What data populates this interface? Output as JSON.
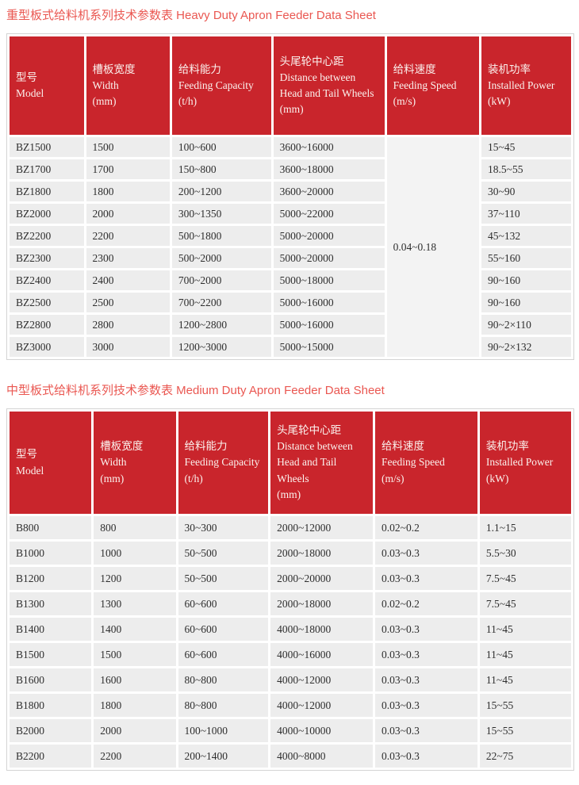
{
  "colors": {
    "header_bg": "#c9252c",
    "header_text": "#fbf2ee",
    "title": "#ea5751",
    "row_bg": "#ededed",
    "merged_cell_bg": "#f3f3f3",
    "body_text": "#2e2e2e",
    "table_border": "#d4d4d4"
  },
  "tables": [
    {
      "id": "heavy-duty",
      "title": "重型板式给料机系列技术参数表 Heavy Duty Apron Feeder Data Sheet",
      "columns": [
        {
          "key": "model",
          "zh": "型号",
          "en": "Model",
          "unit": ""
        },
        {
          "key": "width",
          "zh": "槽板宽度",
          "en": "Width",
          "unit": "(mm)"
        },
        {
          "key": "capacity",
          "zh": "给料能力",
          "en": "Feeding Capacity",
          "unit": "(t/h)"
        },
        {
          "key": "distance",
          "zh": "头尾轮中心距",
          "en": "Distance between Head and Tail Wheels",
          "unit": "(mm)"
        },
        {
          "key": "speed",
          "zh": "给料速度",
          "en": "Feeding Speed",
          "unit": "(m/s)"
        },
        {
          "key": "power",
          "zh": "装机功率",
          "en": "Installed Power",
          "unit": "(kW)"
        }
      ],
      "merged_speed": "0.04~0.18",
      "rows": [
        [
          "BZ1500",
          "1500",
          "100~600",
          "3600~16000",
          "15~45"
        ],
        [
          "BZ1700",
          "1700",
          "150~800",
          "3600~18000",
          "18.5~55"
        ],
        [
          "BZ1800",
          "1800",
          "200~1200",
          "3600~20000",
          "30~90"
        ],
        [
          "BZ2000",
          "2000",
          "300~1350",
          "5000~22000",
          "37~110"
        ],
        [
          "BZ2200",
          "2200",
          "500~1800",
          "5000~20000",
          "45~132"
        ],
        [
          "BZ2300",
          "2300",
          "500~2000",
          "5000~20000",
          "55~160"
        ],
        [
          "BZ2400",
          "2400",
          "700~2000",
          "5000~18000",
          "90~160"
        ],
        [
          "BZ2500",
          "2500",
          "700~2200",
          "5000~16000",
          "90~160"
        ],
        [
          "BZ2800",
          "2800",
          "1200~2800",
          "5000~16000",
          "90~2×110"
        ],
        [
          "BZ3000",
          "3000",
          "1200~3000",
          "5000~15000",
          "90~2×132"
        ]
      ]
    },
    {
      "id": "medium-duty",
      "title": "中型板式给料机系列技术参数表 Medium Duty Apron Feeder Data Sheet",
      "columns": [
        {
          "key": "model",
          "zh": "型号",
          "en": "Model",
          "unit": ""
        },
        {
          "key": "width",
          "zh": "槽板宽度",
          "en": "Width",
          "unit": "(mm)"
        },
        {
          "key": "capacity",
          "zh": "给料能力",
          "en": "Feeding Capacity",
          "unit": "(t/h)"
        },
        {
          "key": "distance",
          "zh": "头尾轮中心距",
          "en": "Distance between Head and Tail Wheels",
          "unit": "(mm)"
        },
        {
          "key": "speed",
          "zh": "给料速度",
          "en": "Feeding Speed",
          "unit": "(m/s)"
        },
        {
          "key": "power",
          "zh": "装机功率",
          "en": "Installed Power",
          "unit": "(kW)"
        }
      ],
      "rows": [
        [
          "B800",
          "800",
          "30~300",
          "2000~12000",
          "0.02~0.2",
          "1.1~15"
        ],
        [
          "B1000",
          "1000",
          "50~500",
          "2000~18000",
          "0.03~0.3",
          "5.5~30"
        ],
        [
          "B1200",
          "1200",
          "50~500",
          "2000~20000",
          "0.03~0.3",
          "7.5~45"
        ],
        [
          "B1300",
          "1300",
          "60~600",
          "2000~18000",
          "0.02~0.2",
          "7.5~45"
        ],
        [
          "B1400",
          "1400",
          "60~600",
          "4000~18000",
          "0.03~0.3",
          "11~45"
        ],
        [
          "B1500",
          "1500",
          "60~600",
          "4000~16000",
          "0.03~0.3",
          "11~45"
        ],
        [
          "B1600",
          "1600",
          "80~800",
          "4000~12000",
          "0.03~0.3",
          "11~45"
        ],
        [
          "B1800",
          "1800",
          "80~800",
          "4000~12000",
          "0.03~0.3",
          "15~55"
        ],
        [
          "B2000",
          "2000",
          "100~1000",
          "4000~10000",
          "0.03~0.3",
          "15~55"
        ],
        [
          "B2200",
          "2200",
          "200~1400",
          "4000~8000",
          "0.03~0.3",
          "22~75"
        ]
      ]
    }
  ]
}
